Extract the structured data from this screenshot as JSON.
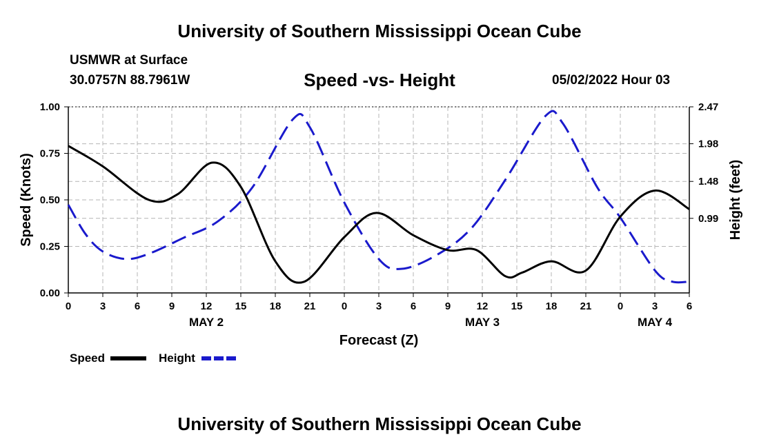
{
  "header": {
    "title_top": "University of Southern Mississippi Ocean Cube",
    "title_bottom": "University of Southern Mississippi Ocean Cube",
    "station": "USMWR at Surface",
    "coords": "30.0757N  88.7961W",
    "chart_title": "Speed -vs- Height",
    "run_date": "05/02/2022 Hour 03"
  },
  "colors": {
    "speed": "#000000",
    "height": "#1a1acc",
    "grid": "#b4b4b4"
  },
  "chart_data": {
    "type": "line",
    "title": "Speed -vs- Height",
    "xlabel": "Forecast (Z)",
    "ylabel": "Speed (Knots)",
    "y2label": "Height (feet)",
    "x_range": [
      0,
      54
    ],
    "ylim": [
      0,
      1
    ],
    "y2lim": [
      0,
      2.47
    ],
    "x_ticks": [
      0,
      3,
      6,
      9,
      12,
      15,
      18,
      21,
      24,
      27,
      30,
      33,
      36,
      39,
      42,
      45,
      48,
      51,
      54
    ],
    "x_tick_labels": [
      "0",
      "3",
      "6",
      "9",
      "12",
      "15",
      "18",
      "21",
      "0",
      "3",
      "6",
      "9",
      "12",
      "15",
      "18",
      "21",
      "0",
      "3",
      "6"
    ],
    "day_labels": [
      {
        "x": 12,
        "label": "MAY 2"
      },
      {
        "x": 36,
        "label": "MAY 3"
      },
      {
        "x": 51,
        "label": "MAY 4"
      }
    ],
    "y_ticks": [
      0,
      0.25,
      0.5,
      0.75,
      1.0
    ],
    "y_tick_labels": [
      "0.00",
      "0.25",
      "0.50",
      "0.75",
      "1.00"
    ],
    "y2_ticks": [
      0.99,
      1.48,
      1.98,
      2.47
    ],
    "y2_tick_labels": [
      "0.99",
      "1.48",
      "1.98",
      "2.47"
    ],
    "grid": true,
    "legend": [
      {
        "name": "Speed",
        "style": "solid"
      },
      {
        "name": "Height",
        "style": "dashed"
      }
    ],
    "series": [
      {
        "name": "Speed",
        "axis": "left",
        "x": [
          0,
          3,
          7,
          9.5,
          12.5,
          15,
          18,
          20.5,
          24,
          26.8,
          30,
          33,
          35.5,
          38,
          39.5,
          42,
          45,
          48,
          51,
          54
        ],
        "values": [
          0.79,
          0.68,
          0.5,
          0.53,
          0.7,
          0.57,
          0.17,
          0.06,
          0.3,
          0.43,
          0.31,
          0.23,
          0.23,
          0.09,
          0.11,
          0.17,
          0.12,
          0.41,
          0.55,
          0.45
        ]
      },
      {
        "name": "Height",
        "axis": "right",
        "x": [
          0,
          1.5,
          3,
          5,
          7,
          10,
          13,
          16,
          19.5,
          21,
          24,
          27,
          29,
          32,
          35,
          38,
          41.5,
          43,
          46,
          48,
          51,
          52.5,
          54
        ],
        "values": [
          1.17,
          0.78,
          0.55,
          0.45,
          0.52,
          0.73,
          0.95,
          1.4,
          2.3,
          2.2,
          1.2,
          0.45,
          0.32,
          0.5,
          0.85,
          1.5,
          2.35,
          2.25,
          1.4,
          1.0,
          0.3,
          0.15,
          0.15
        ]
      }
    ]
  }
}
